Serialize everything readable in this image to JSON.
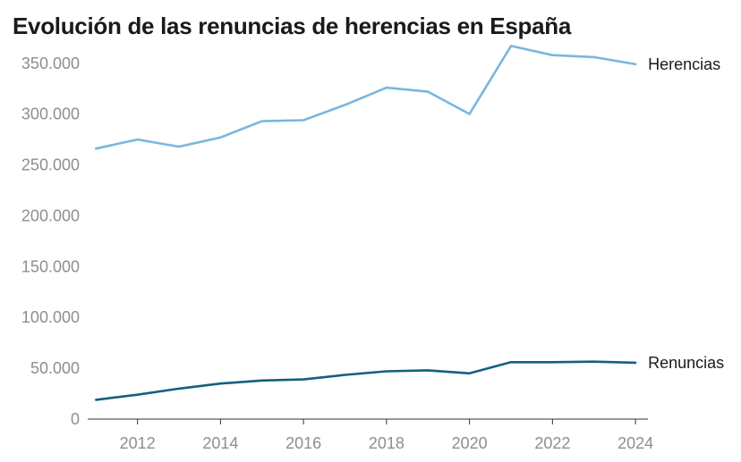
{
  "chart_data": {
    "type": "line",
    "title": "Evolución de las renuncias de herencias en España",
    "xlabel": "",
    "ylabel": "",
    "x": [
      2011,
      2012,
      2013,
      2014,
      2015,
      2016,
      2017,
      2018,
      2019,
      2020,
      2021,
      2022,
      2023,
      2024
    ],
    "xlim": [
      2010.8,
      2024.3
    ],
    "ylim": [
      0,
      370000
    ],
    "x_ticks": [
      {
        "value": 2012,
        "label": "2012"
      },
      {
        "value": 2014,
        "label": "2014"
      },
      {
        "value": 2016,
        "label": "2016"
      },
      {
        "value": 2018,
        "label": "2018"
      },
      {
        "value": 2020,
        "label": "2020"
      },
      {
        "value": 2022,
        "label": "2022"
      },
      {
        "value": 2024,
        "label": "2024"
      }
    ],
    "y_ticks": [
      {
        "value": 0,
        "label": "0"
      },
      {
        "value": 50000,
        "label": "50.000"
      },
      {
        "value": 100000,
        "label": "100.000"
      },
      {
        "value": 150000,
        "label": "150.000"
      },
      {
        "value": 200000,
        "label": "200.000"
      },
      {
        "value": 250000,
        "label": "250.000"
      },
      {
        "value": 300000,
        "label": "300.000"
      },
      {
        "value": 350000,
        "label": "350.000"
      }
    ],
    "grid": false,
    "legend": "end-of-line labels",
    "series": [
      {
        "name": "Herencias",
        "color": "#7ab6df",
        "values": [
          266000,
          275000,
          268000,
          277000,
          293000,
          294000,
          309000,
          326000,
          322000,
          300000,
          367000,
          358000,
          356000,
          349000
        ]
      },
      {
        "name": "Renuncias",
        "color": "#14607f",
        "values": [
          19000,
          24000,
          30000,
          35000,
          38000,
          39000,
          43500,
          47000,
          48000,
          45000,
          56000,
          56000,
          56500,
          55500
        ]
      }
    ]
  }
}
